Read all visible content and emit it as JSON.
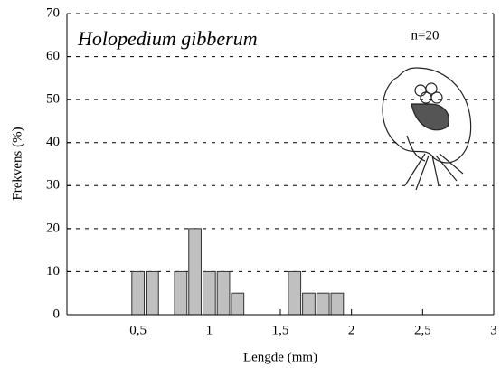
{
  "chart_data": {
    "type": "histogram",
    "title": "Holopedium gibberum",
    "annotation": "n=20",
    "x_label": "Lengde (mm)",
    "y_label": "Frekvens (%)",
    "bins": [
      0.45,
      0.55,
      0.65,
      0.75,
      0.85,
      0.95,
      1.05,
      1.15,
      1.25,
      1.35,
      1.45,
      1.55,
      1.65,
      1.75,
      1.85,
      1.95
    ],
    "values": [
      10,
      10,
      0,
      10,
      20,
      10,
      10,
      5,
      0,
      0,
      0,
      10,
      5,
      5,
      5
    ],
    "color": "#c0c0c0",
    "xlim": [
      0,
      3
    ],
    "xticks": [
      {
        "value": 0.5,
        "label": "0,5"
      },
      1,
      {
        "value": 1.5,
        "label": "1,5"
      },
      2,
      {
        "value": 2.5,
        "label": "2,5"
      },
      3
    ],
    "ylim": [
      0,
      70
    ],
    "yticks": [
      0,
      10,
      20,
      30,
      40,
      50,
      60,
      70
    ],
    "grid": true
  }
}
